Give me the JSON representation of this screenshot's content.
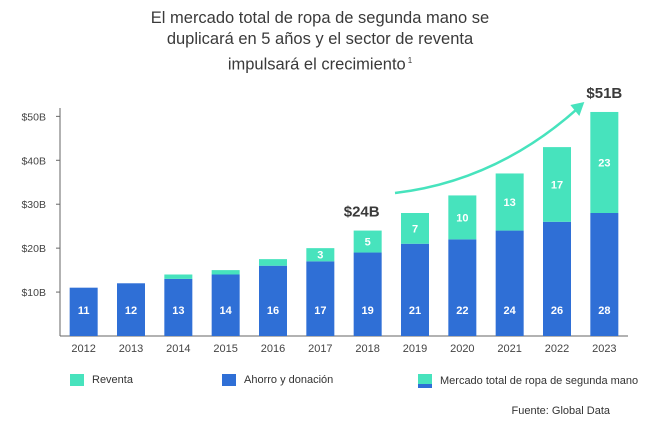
{
  "title": {
    "line1": "El mercado total de ropa de segunda mano se",
    "line2": "duplicará en 5 años y el sector de reventa",
    "line3": "impulsará el crecimiento",
    "footnote": "1"
  },
  "chart_data": {
    "type": "bar",
    "stacked": true,
    "categories": [
      "2012",
      "2013",
      "2014",
      "2015",
      "2016",
      "2017",
      "2018",
      "2019",
      "2020",
      "2021",
      "2022",
      "2023"
    ],
    "series": [
      {
        "name": "Ahorro y donación",
        "color": "#2f6fd6",
        "values": [
          11,
          12,
          13,
          14,
          16,
          17,
          19,
          21,
          22,
          24,
          26,
          28
        ],
        "labels": [
          "11",
          "12",
          "13",
          "14",
          "16",
          "17",
          "19",
          "21",
          "22",
          "24",
          "26",
          "28"
        ]
      },
      {
        "name": "Reventa",
        "color": "#47e3bd",
        "values": [
          0,
          0,
          1,
          1,
          1.5,
          3,
          5,
          7,
          10,
          13,
          17,
          23
        ],
        "labels": [
          "",
          "",
          "",
          "",
          "",
          "3",
          "5",
          "7",
          "10",
          "13",
          "17",
          "23"
        ]
      }
    ],
    "yticks": [
      "$10B",
      "$20B",
      "$30B",
      "$40B",
      "$50B"
    ],
    "ytick_values": [
      10,
      20,
      30,
      40,
      50
    ],
    "ylim": [
      0,
      56
    ],
    "annotations": [
      {
        "text": "$24B",
        "year": "2018"
      },
      {
        "text": "$51B",
        "year": "2023"
      }
    ],
    "trend_arrow": {
      "from": "2019",
      "to": "2023"
    }
  },
  "legend": {
    "reventa": "Reventa",
    "ahorro": "Ahorro y donación",
    "mercado": "Mercado total de ropa de segunda mano"
  },
  "source": "Fuente: Global Data",
  "colors": {
    "dark": "#2f6fd6",
    "light": "#47e3bd",
    "axis": "#555555",
    "text": "#333333"
  }
}
